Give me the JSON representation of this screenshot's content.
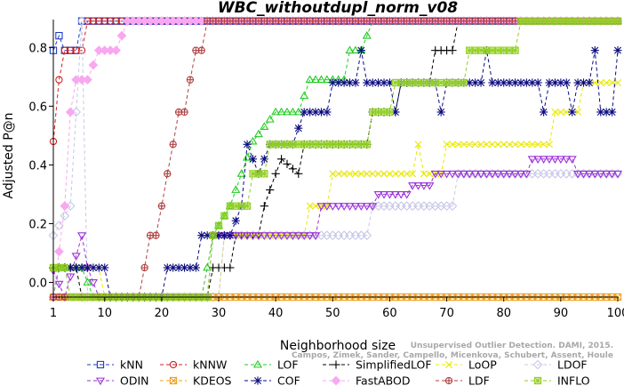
{
  "chart_data": {
    "type": "line",
    "title": "WBC_withoutdupl_norm_v08",
    "xlabel": "Neighborhood size",
    "ylabel": "Adjusted P@n",
    "xlim": [
      1,
      100
    ],
    "ylim": [
      -0.05,
      0.895
    ],
    "xticks": [
      1,
      10,
      20,
      30,
      40,
      50,
      60,
      70,
      80,
      90,
      100
    ],
    "yticks": [
      0.0,
      0.2,
      0.4,
      0.6,
      0.8
    ],
    "grid": false,
    "legend_position": "bottom",
    "credit": {
      "line1": "Unsupervised Outlier Detection. DAMI, 2015.",
      "line2": "Campos, Zimek, Sander, Campello, Micenkova, Schubert, Assent, Houle"
    },
    "series": [
      {
        "name": "kNN",
        "color": "#1e3cc8",
        "marker": "square",
        "dash": "4,3",
        "points": [
          [
            1,
            0.79
          ],
          [
            2,
            0.84
          ],
          [
            3,
            0.79
          ],
          [
            5,
            0.79
          ],
          [
            6,
            0.89
          ],
          [
            100,
            0.89
          ]
        ]
      },
      {
        "name": "kNNW",
        "color": "#d22020",
        "marker": "circle",
        "dash": "4,3",
        "points": [
          [
            1,
            0.48
          ],
          [
            2,
            0.69
          ],
          [
            3,
            0.79
          ],
          [
            5,
            0.79
          ],
          [
            6,
            0.79
          ],
          [
            7,
            0.89
          ],
          [
            100,
            0.89
          ]
        ]
      },
      {
        "name": "LOF",
        "color": "#22cc22",
        "marker": "triangle",
        "dash": "4,3",
        "points": [
          [
            1,
            -0.05
          ],
          [
            2,
            0.05
          ],
          [
            4,
            0.05
          ],
          [
            6,
            0.05
          ],
          [
            8,
            -0.05
          ],
          [
            27,
            -0.05
          ],
          [
            28,
            0.05
          ],
          [
            29,
            0.16
          ],
          [
            32,
            0.26
          ],
          [
            34,
            0.37
          ],
          [
            36,
            0.48
          ],
          [
            38,
            0.53
          ],
          [
            40,
            0.58
          ],
          [
            44,
            0.58
          ],
          [
            46,
            0.69
          ],
          [
            52,
            0.69
          ],
          [
            53,
            0.79
          ],
          [
            55,
            0.79
          ],
          [
            57,
            0.89
          ],
          [
            100,
            0.89
          ]
        ]
      },
      {
        "name": "SimplifiedLOF",
        "color": "#000000",
        "marker": "plus",
        "dash": "4,3",
        "points": [
          [
            1,
            0.05
          ],
          [
            3,
            0.05
          ],
          [
            5,
            0.05
          ],
          [
            6,
            -0.05
          ],
          [
            28,
            -0.05
          ],
          [
            29,
            0.05
          ],
          [
            32,
            0.05
          ],
          [
            33,
            0.16
          ],
          [
            37,
            0.16
          ],
          [
            38,
            0.26
          ],
          [
            40,
            0.37
          ],
          [
            41,
            0.42
          ],
          [
            44,
            0.37
          ],
          [
            45,
            0.47
          ],
          [
            56,
            0.47
          ],
          [
            57,
            0.58
          ],
          [
            61,
            0.58
          ],
          [
            62,
            0.68
          ],
          [
            67,
            0.68
          ],
          [
            68,
            0.79
          ],
          [
            71,
            0.79
          ],
          [
            72,
            0.89
          ],
          [
            100,
            0.89
          ]
        ]
      },
      {
        "name": "LoOP",
        "color": "#e8e800",
        "marker": "x",
        "dash": "4,3",
        "points": [
          [
            1,
            0.05
          ],
          [
            9,
            0.05
          ],
          [
            10,
            -0.05
          ],
          [
            30,
            -0.05
          ],
          [
            31,
            0.16
          ],
          [
            45,
            0.16
          ],
          [
            46,
            0.26
          ],
          [
            49,
            0.26
          ],
          [
            50,
            0.37
          ],
          [
            64,
            0.37
          ],
          [
            65,
            0.47
          ],
          [
            66,
            0.37
          ],
          [
            69,
            0.37
          ],
          [
            70,
            0.47
          ],
          [
            88,
            0.47
          ],
          [
            89,
            0.58
          ],
          [
            93,
            0.58
          ],
          [
            94,
            0.68
          ],
          [
            100,
            0.68
          ]
        ]
      },
      {
        "name": "LDOF",
        "color": "#c8c8e8",
        "marker": "diamond",
        "dash": "4,3",
        "points": [
          [
            1,
            0.16
          ],
          [
            4,
            0.26
          ],
          [
            5,
            0.58
          ],
          [
            6,
            0.89
          ],
          [
            7,
            -0.05
          ],
          [
            30,
            -0.05
          ],
          [
            31,
            0.16
          ],
          [
            56,
            0.16
          ],
          [
            57,
            0.26
          ],
          [
            71,
            0.26
          ],
          [
            72,
            0.37
          ],
          [
            100,
            0.37
          ]
        ]
      },
      {
        "name": "ODIN",
        "color": "#9a30d8",
        "marker": "triangle-down",
        "dash": "4,3",
        "points": [
          [
            1,
            0.04
          ],
          [
            3,
            -0.05
          ],
          [
            6,
            0.16
          ],
          [
            7,
            0.05
          ],
          [
            9,
            -0.05
          ],
          [
            28,
            -0.05
          ],
          [
            29,
            0.16
          ],
          [
            47,
            0.16
          ],
          [
            48,
            0.26
          ],
          [
            57,
            0.26
          ],
          [
            58,
            0.3
          ],
          [
            63,
            0.3
          ],
          [
            64,
            0.33
          ],
          [
            67,
            0.33
          ],
          [
            68,
            0.37
          ],
          [
            84,
            0.37
          ],
          [
            85,
            0.42
          ],
          [
            92,
            0.42
          ],
          [
            93,
            0.37
          ],
          [
            100,
            0.37
          ]
        ]
      },
      {
        "name": "KDEOS",
        "color": "#f0a020",
        "marker": "square-x",
        "dash": "4,3",
        "points": [
          [
            1,
            -0.05
          ],
          [
            100,
            -0.05
          ]
        ]
      },
      {
        "name": "COF",
        "color": "#0a0a80",
        "marker": "asterisk",
        "dash": "4,3",
        "points": [
          [
            1,
            0.05
          ],
          [
            10,
            0.05
          ],
          [
            11,
            -0.05
          ],
          [
            20,
            -0.05
          ],
          [
            21,
            0.05
          ],
          [
            26,
            0.05
          ],
          [
            27,
            0.16
          ],
          [
            32,
            0.16
          ],
          [
            34,
            0.26
          ],
          [
            35,
            0.47
          ],
          [
            37,
            0.37
          ],
          [
            39,
            0.47
          ],
          [
            43,
            0.47
          ],
          [
            45,
            0.58
          ],
          [
            49,
            0.58
          ],
          [
            50,
            0.68
          ],
          [
            54,
            0.68
          ],
          [
            55,
            0.79
          ],
          [
            56,
            0.68
          ],
          [
            60,
            0.68
          ],
          [
            61,
            0.58
          ],
          [
            62,
            0.68
          ],
          [
            68,
            0.68
          ],
          [
            69,
            0.58
          ],
          [
            70,
            0.68
          ],
          [
            76,
            0.68
          ],
          [
            77,
            0.79
          ],
          [
            78,
            0.68
          ],
          [
            86,
            0.68
          ],
          [
            87,
            0.58
          ],
          [
            88,
            0.68
          ],
          [
            91,
            0.68
          ],
          [
            92,
            0.58
          ],
          [
            93,
            0.68
          ],
          [
            95,
            0.68
          ],
          [
            96,
            0.79
          ],
          [
            97,
            0.58
          ],
          [
            99,
            0.58
          ],
          [
            100,
            0.79
          ]
        ]
      },
      {
        "name": "FastABOD",
        "color": "#f8a8f0",
        "marker": "diamond-fill",
        "dash": "4,3",
        "points": [
          [
            1,
            -0.05
          ],
          [
            3,
            0.26
          ],
          [
            4,
            0.58
          ],
          [
            5,
            0.69
          ],
          [
            7,
            0.69
          ],
          [
            9,
            0.79
          ],
          [
            12,
            0.79
          ],
          [
            14,
            0.89
          ],
          [
            100,
            0.89
          ]
        ]
      },
      {
        "name": "LDF",
        "color": "#b04040",
        "marker": "circle-plus",
        "dash": "4,3",
        "points": [
          [
            1,
            -0.05
          ],
          [
            16,
            -0.05
          ],
          [
            17,
            0.05
          ],
          [
            18,
            0.16
          ],
          [
            19,
            0.16
          ],
          [
            20,
            0.26
          ],
          [
            21,
            0.37
          ],
          [
            22,
            0.47
          ],
          [
            23,
            0.58
          ],
          [
            24,
            0.58
          ],
          [
            25,
            0.69
          ],
          [
            26,
            0.79
          ],
          [
            27,
            0.79
          ],
          [
            28,
            0.89
          ],
          [
            100,
            0.89
          ]
        ]
      },
      {
        "name": "INFLO",
        "color": "#90d020",
        "marker": "square-star",
        "dash": "4,3",
        "points": [
          [
            1,
            0.05
          ],
          [
            3,
            0.05
          ],
          [
            4,
            -0.05
          ],
          [
            28,
            -0.05
          ],
          [
            29,
            0.16
          ],
          [
            32,
            0.26
          ],
          [
            35,
            0.26
          ],
          [
            36,
            0.37
          ],
          [
            38,
            0.37
          ],
          [
            39,
            0.47
          ],
          [
            56,
            0.47
          ],
          [
            57,
            0.58
          ],
          [
            60,
            0.58
          ],
          [
            61,
            0.68
          ],
          [
            73,
            0.68
          ],
          [
            74,
            0.79
          ],
          [
            82,
            0.79
          ],
          [
            83,
            0.89
          ],
          [
            100,
            0.89
          ]
        ]
      }
    ]
  }
}
